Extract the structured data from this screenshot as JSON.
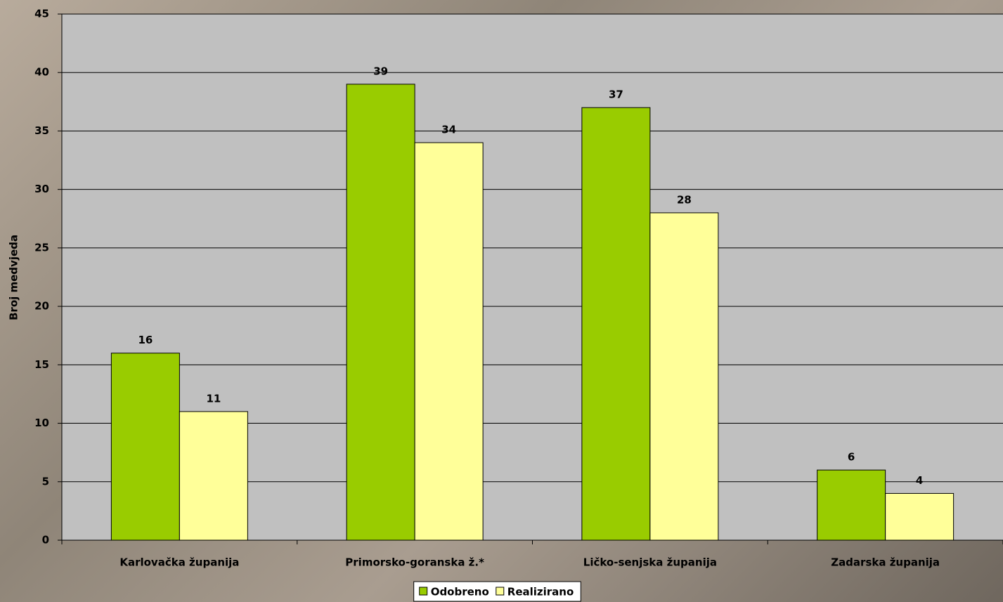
{
  "chart_data": {
    "type": "bar",
    "y_label": "Broj medvjeda",
    "categories": [
      "Karlovačka županija",
      "Primorsko-goranska ž.*",
      "Ličko-senjska županija",
      "Zadarska županija"
    ],
    "series": [
      {
        "name": "Odobreno",
        "color": "#99cc00",
        "values": [
          16,
          39,
          37,
          6
        ]
      },
      {
        "name": "Realizirano",
        "color": "#ffff99",
        "values": [
          11,
          34,
          28,
          4
        ]
      }
    ],
    "ylim": [
      0,
      45
    ],
    "yticks": [
      0,
      5,
      10,
      15,
      20,
      25,
      30,
      35,
      40,
      45
    ],
    "grid": true,
    "legend": "bottom"
  }
}
